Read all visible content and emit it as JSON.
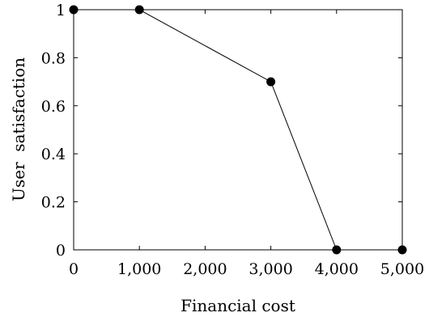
{
  "chart_data": {
    "type": "line",
    "title": "",
    "xlabel": "Financial cost",
    "ylabel": "User  satisfaction",
    "xlim": [
      0,
      5000
    ],
    "ylim": [
      0,
      1
    ],
    "grid": false,
    "x_ticks": [
      0,
      1000,
      2000,
      3000,
      4000,
      5000
    ],
    "x_tick_labels": [
      "0",
      "1,000",
      "2,000",
      "3,000",
      "4,000",
      "5,000"
    ],
    "y_ticks": [
      0,
      0.2,
      0.4,
      0.6,
      0.8,
      1
    ],
    "y_tick_labels": [
      "0",
      "0.2",
      "0.4",
      "0.6",
      "0.8",
      "1"
    ],
    "series": [
      {
        "x": [
          0,
          1000,
          3000,
          4000,
          5000
        ],
        "y": [
          1,
          1,
          0.7,
          0,
          0
        ],
        "color": "#000000",
        "marker": "circle"
      }
    ]
  }
}
